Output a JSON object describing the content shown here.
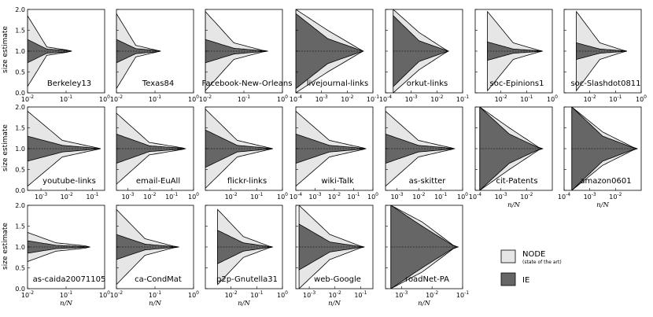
{
  "chart_data": {
    "type": "area",
    "ylabel": "size estimate",
    "xlabel": "n/N",
    "ylim": [
      0,
      2.0
    ],
    "yticks": [
      "0.0",
      "0.5",
      "1.0",
      "1.5",
      "2.0"
    ],
    "x_scale": "log",
    "legend": {
      "placement": "bottom-right",
      "entries": [
        {
          "name": "NODE",
          "sub": "(state of the art)",
          "color": "#e6e6e6"
        },
        {
          "name": "IE",
          "color": "#666666"
        }
      ]
    },
    "panels": [
      {
        "name": "Berkeley13",
        "xmin": 0.01,
        "xmax": 1,
        "x_end": 0.1,
        "x_ticks": [
          "10^-2",
          "10^-1",
          "10^0"
        ],
        "node_band": [
          0.85,
          0.1,
          0.03
        ],
        "ie_band": [
          0.28,
          0.05,
          0.02
        ],
        "x_start": 0.01,
        "ie_light": false
      },
      {
        "name": "Texas84",
        "xmin": 0.01,
        "xmax": 1,
        "x_end": 0.1,
        "x_ticks": [
          "10^-2",
          "10^-1",
          "10^0"
        ],
        "node_band": [
          0.9,
          0.14,
          0.03
        ],
        "ie_band": [
          0.28,
          0.06,
          0.02
        ],
        "x_start": 0.01,
        "ie_light": false
      },
      {
        "name": "Facebook-New-Orleans",
        "xmin": 0.01,
        "xmax": 1,
        "x_end": 0.3,
        "x_ticks": [
          "10^-2",
          "10^-1",
          "10^0"
        ],
        "node_band": [
          0.95,
          0.2,
          0.02
        ],
        "ie_band": [
          0.28,
          0.07,
          0.01
        ],
        "x_start": 0.01,
        "ie_light": false
      },
      {
        "name": "livejournal-links",
        "xmin": 0.0001,
        "xmax": 0.1,
        "x_end": 0.03,
        "x_ticks": [
          "10^-4",
          "10^-3",
          "10^-2",
          "10^-1"
        ],
        "node_band": [
          1.0,
          0.5,
          0.05
        ],
        "ie_band": [
          0.9,
          0.3,
          0.03
        ],
        "x_start": 0.0001,
        "ie_light": false
      },
      {
        "name": "orkut-links",
        "xmin": 0.0001,
        "xmax": 0.1,
        "x_end": 0.02,
        "x_ticks": [
          "10^-4",
          "10^-3",
          "10^-2",
          "10^-1"
        ],
        "node_band": [
          1.0,
          0.45,
          0.05
        ],
        "ie_band": [
          0.85,
          0.25,
          0.03
        ],
        "x_start": 0.0002,
        "ie_light": false
      },
      {
        "name": "soc-Epinions1",
        "xmin": 0.001,
        "xmax": 1,
        "x_end": 0.3,
        "x_ticks": [
          "10^-2",
          "10^-1",
          "10^0"
        ],
        "node_band": [
          0.95,
          0.2,
          0.02
        ],
        "ie_band": [
          0.22,
          0.05,
          0.01
        ],
        "x_start": 0.003,
        "ie_light": false
      },
      {
        "name": "soc-Slashdot0811",
        "xmin": 0.001,
        "xmax": 1,
        "x_end": 0.2,
        "x_ticks": [
          "10^-2",
          "10^-1",
          "10^0"
        ],
        "node_band": [
          0.95,
          0.2,
          0.02
        ],
        "ie_band": [
          0.2,
          0.05,
          0.01
        ],
        "x_start": 0.003,
        "ie_light": false
      },
      {
        "name": "youtube-links",
        "xmin": 0.0003,
        "xmax": 0.3,
        "x_end": 0.15,
        "x_ticks": [
          "10^-3",
          "10^-2",
          "10^-1"
        ],
        "node_band": [
          0.9,
          0.2,
          0.02
        ],
        "ie_band": [
          0.3,
          0.08,
          0.01
        ],
        "x_start": 0.0003,
        "ie_light": false
      },
      {
        "name": "email-EuAll",
        "xmin": 0.0003,
        "xmax": 1,
        "x_end": 0.3,
        "x_ticks": [
          "10^-3",
          "10^-2",
          "10^-1",
          "10^0"
        ],
        "node_band": [
          0.85,
          0.15,
          0.02
        ],
        "ie_band": [
          0.35,
          0.07,
          0.01
        ],
        "x_start": 0.0003,
        "ie_light": false
      },
      {
        "name": "flickr-links",
        "xmin": 0.001,
        "xmax": 1,
        "x_end": 0.3,
        "x_ticks": [
          "10^-2",
          "10^-1",
          "10^0"
        ],
        "node_band": [
          0.95,
          0.2,
          0.02
        ],
        "ie_band": [
          0.45,
          0.08,
          0.01
        ],
        "x_start": 0.001,
        "ie_light": false
      },
      {
        "name": "wiki-Talk",
        "xmin": 0.0001,
        "xmax": 1,
        "x_end": 0.3,
        "x_ticks": [
          "10^-4",
          "10^-3",
          "10^-2",
          "10^-1",
          "10^0"
        ],
        "node_band": [
          0.9,
          0.2,
          0.02
        ],
        "ie_band": [
          0.35,
          0.08,
          0.01
        ],
        "x_start": 0.0001,
        "ie_light": false
      },
      {
        "name": "as-skitter",
        "xmin": 0.0003,
        "xmax": 1,
        "x_end": 0.3,
        "x_ticks": [
          "10^-3",
          "10^-2",
          "10^-1",
          "10^0"
        ],
        "node_band": [
          0.9,
          0.2,
          0.02
        ],
        "ie_band": [
          0.35,
          0.08,
          0.01
        ],
        "x_start": 0.0003,
        "ie_light": false
      },
      {
        "name": "cit-Patents",
        "xmin": 0.0001,
        "xmax": 0.1,
        "x_end": 0.03,
        "x_ticks": [
          "10^-4",
          "10^-3",
          "10^-2"
        ],
        "node_band": [
          1.0,
          0.5,
          0.03
        ],
        "ie_band": [
          1.0,
          0.35,
          0.02
        ],
        "x_start": 0.00015,
        "ie_light": true
      },
      {
        "name": "amazon0601",
        "xmin": 0.0001,
        "xmax": 0.1,
        "x_end": 0.05,
        "x_ticks": [
          "10^-4",
          "10^-3",
          "10^-2"
        ],
        "node_band": [
          1.0,
          0.4,
          0.03
        ],
        "ie_band": [
          1.0,
          0.3,
          0.02
        ],
        "x_start": 0.0002,
        "ie_light": true
      },
      {
        "name": "as-caida20071105",
        "xmin": 0.01,
        "xmax": 1,
        "x_end": 0.3,
        "x_ticks": [
          "10^-2",
          "10^-1",
          "10^0"
        ],
        "node_band": [
          0.35,
          0.1,
          0.03
        ],
        "ie_band": [
          0.15,
          0.04,
          0.01
        ],
        "x_start": 0.01,
        "ie_light": false
      },
      {
        "name": "ca-CondMat",
        "xmin": 0.01,
        "xmax": 1,
        "x_end": 0.3,
        "x_ticks": [
          "10^-2",
          "10^-1",
          "10^0"
        ],
        "node_band": [
          0.9,
          0.2,
          0.02
        ],
        "ie_band": [
          0.3,
          0.07,
          0.01
        ],
        "x_start": 0.01,
        "ie_light": false
      },
      {
        "name": "p2p-Gnutella31",
        "xmin": 0.001,
        "xmax": 1,
        "x_end": 0.3,
        "x_ticks": [
          "10^-2",
          "10^-1",
          "10^0"
        ],
        "node_band": [
          0.9,
          0.25,
          0.02
        ],
        "ie_band": [
          0.4,
          0.1,
          0.01
        ],
        "x_start": 0.003,
        "ie_light": false
      },
      {
        "name": "web-Google",
        "xmin": 0.0003,
        "xmax": 0.3,
        "x_end": 0.1,
        "x_ticks": [
          "10^-3",
          "10^-2",
          "10^-1"
        ],
        "node_band": [
          1.0,
          0.3,
          0.02
        ],
        "ie_band": [
          0.55,
          0.12,
          0.01
        ],
        "x_start": 0.0004,
        "ie_light": false
      },
      {
        "name": "roadNet-PA",
        "xmin": 0.0003,
        "xmax": 0.1,
        "x_end": 0.05,
        "x_ticks": [
          "10^-3",
          "10^-2",
          "10^-1"
        ],
        "node_band": [
          1.0,
          0.6,
          0.04
        ],
        "ie_band": [
          1.0,
          0.5,
          0.03
        ],
        "x_start": 0.00045,
        "ie_light": true
      }
    ]
  }
}
